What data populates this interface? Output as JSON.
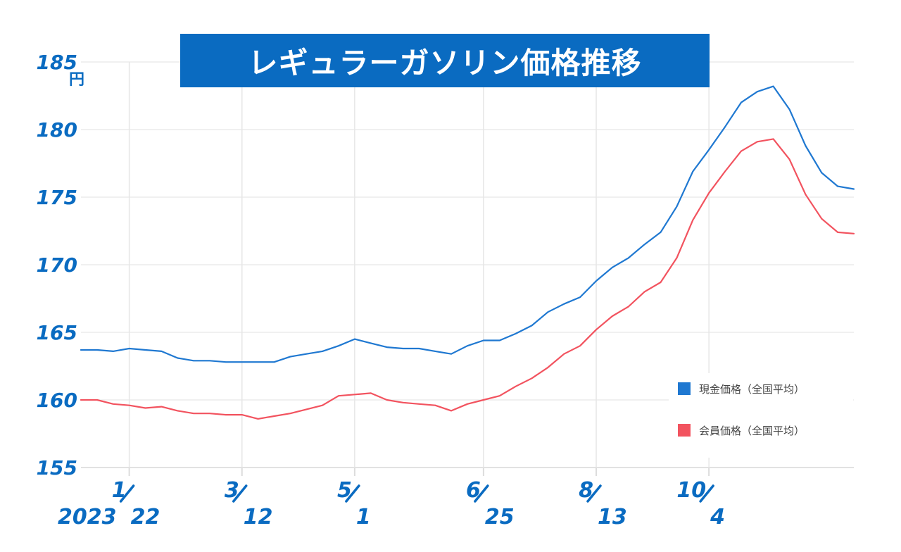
{
  "chart_data": {
    "type": "line",
    "title": "レギュラーガソリン価格推移",
    "unit": "円",
    "year_label": "2023",
    "ylim": [
      155,
      185
    ],
    "yticks": [
      155,
      160,
      165,
      170,
      175,
      180,
      185
    ],
    "x_tick_labels": [
      {
        "index": 3,
        "top": "1",
        "bottom": "22"
      },
      {
        "index": 10,
        "top": "3",
        "bottom": "12"
      },
      {
        "index": 17,
        "top": "5",
        "bottom": "1"
      },
      {
        "index": 25,
        "top": "6",
        "bottom": "25"
      },
      {
        "index": 32,
        "top": "8",
        "bottom": "13"
      },
      {
        "index": 39,
        "top": "10",
        "bottom": "4"
      }
    ],
    "grid": true,
    "legend_position": "right",
    "series": [
      {
        "name": "現金価格（全国平均）",
        "color": "#1f78d1",
        "values": [
          163.7,
          163.7,
          163.6,
          163.8,
          163.7,
          163.6,
          163.1,
          162.9,
          162.9,
          162.8,
          162.8,
          162.8,
          162.8,
          163.2,
          163.4,
          163.6,
          164.0,
          164.5,
          164.2,
          163.9,
          163.8,
          163.8,
          163.6,
          163.4,
          164.0,
          164.4,
          164.4,
          164.9,
          165.5,
          166.5,
          167.1,
          167.6,
          168.8,
          169.8,
          170.5,
          171.5,
          172.4,
          174.3,
          176.9,
          178.5,
          180.2,
          182.0,
          182.8,
          183.2,
          181.5,
          178.8,
          176.8,
          175.8,
          175.6
        ]
      },
      {
        "name": "会員価格（全国平均）",
        "color": "#f2535f",
        "values": [
          160.0,
          160.0,
          159.7,
          159.6,
          159.4,
          159.5,
          159.2,
          159.0,
          159.0,
          158.9,
          158.9,
          158.6,
          158.8,
          159.0,
          159.3,
          159.6,
          160.3,
          160.4,
          160.5,
          160.0,
          159.8,
          159.7,
          159.6,
          159.2,
          159.7,
          160.0,
          160.3,
          161.0,
          161.6,
          162.4,
          163.4,
          164.0,
          165.2,
          166.2,
          166.9,
          168.0,
          168.7,
          170.5,
          173.3,
          175.3,
          176.9,
          178.4,
          179.1,
          179.3,
          177.8,
          175.2,
          173.4,
          172.4,
          172.3
        ]
      }
    ]
  }
}
